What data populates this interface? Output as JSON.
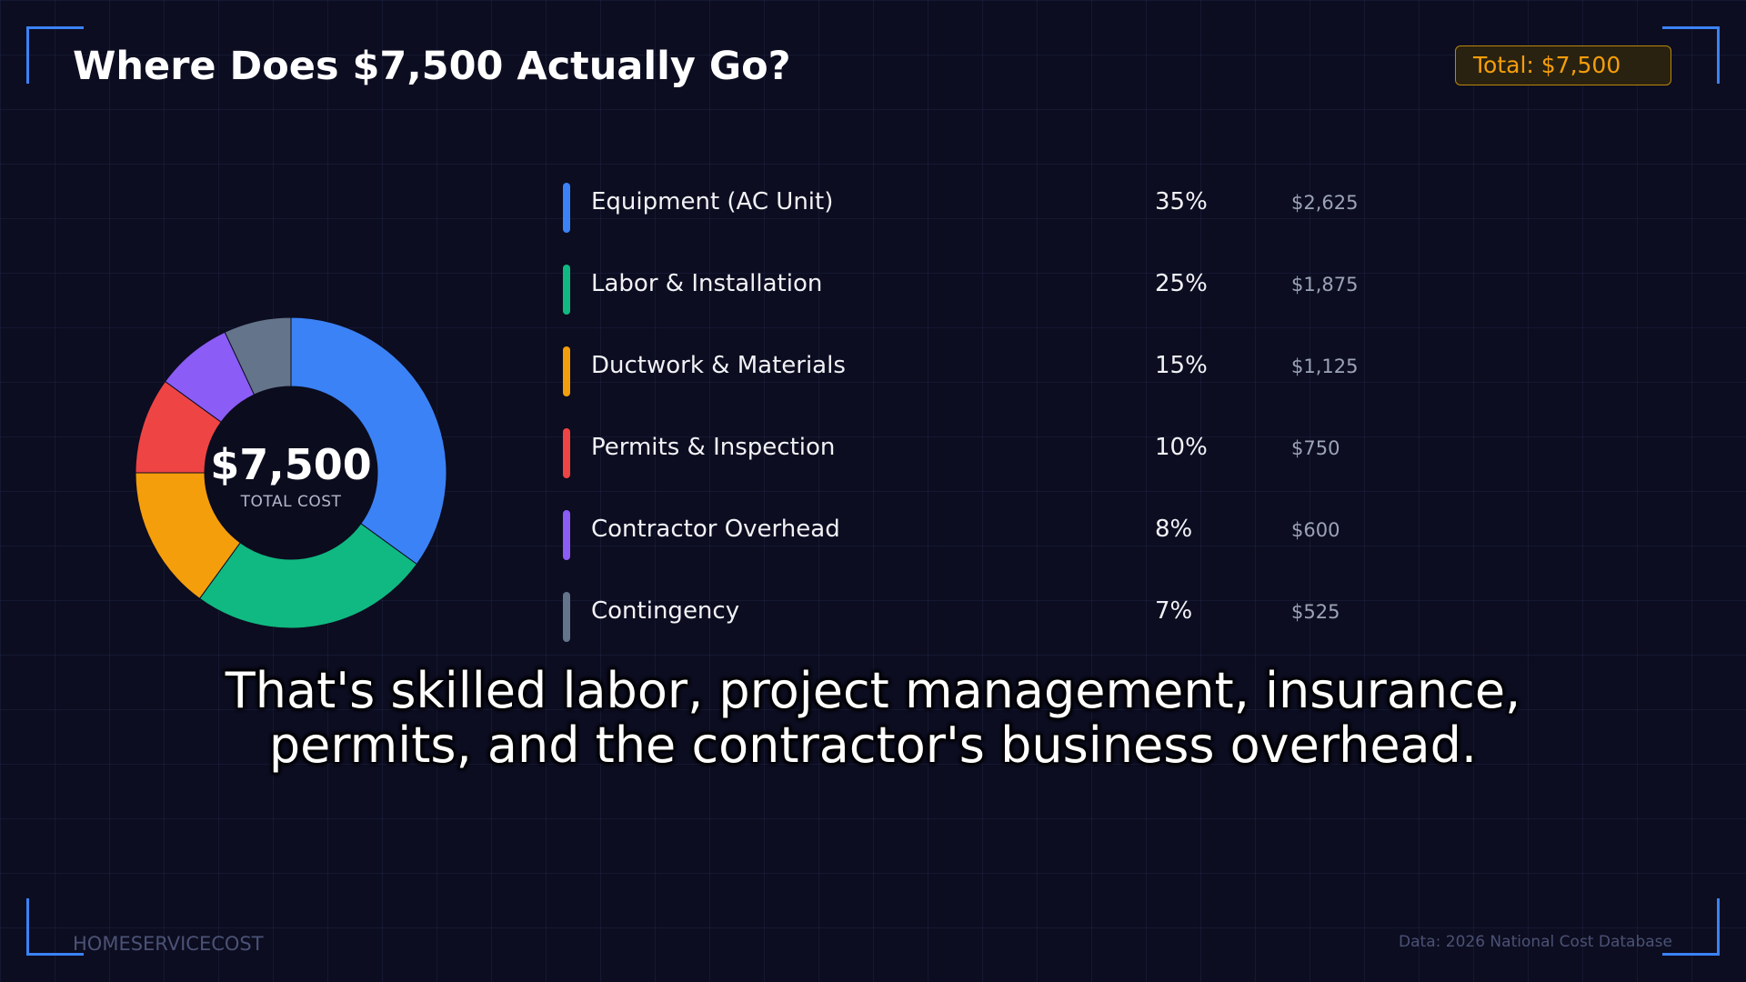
{
  "title": "Where Does $7,500 Actually Go?",
  "badge": "Total: $7,500",
  "center": {
    "value": "$7,500",
    "label": "TOTAL COST"
  },
  "caption": {
    "line1": "That's skilled labor, project management, insurance,",
    "line2": "permits, and the contractor's business overhead."
  },
  "footer": {
    "brand": "HOMESERVICECOST",
    "source": "Data: 2026 National Cost Database"
  },
  "colors": {
    "background": "#0c0d20",
    "accent": "#3b82f6",
    "badge": "#f59e0b"
  },
  "chart_data": {
    "type": "pie",
    "title": "Where Does $7,500 Actually Go?",
    "total": 7500,
    "categories": [
      "Equipment (AC Unit)",
      "Labor & Installation",
      "Ductwork & Materials",
      "Permits & Inspection",
      "Contractor Overhead",
      "Contingency"
    ],
    "values": [
      35,
      25,
      15,
      10,
      8,
      7
    ],
    "amounts": [
      2625,
      1875,
      1125,
      750,
      600,
      525
    ],
    "percent_labels": [
      "35%",
      "25%",
      "15%",
      "10%",
      "8%",
      "7%"
    ],
    "amount_labels": [
      "$2,625",
      "$1,875",
      "$1,125",
      "$750",
      "$600",
      "$525"
    ],
    "colors": [
      "#3b82f6",
      "#10b981",
      "#f59e0b",
      "#ef4444",
      "#8b5cf6",
      "#64748b"
    ],
    "legend": "right"
  }
}
